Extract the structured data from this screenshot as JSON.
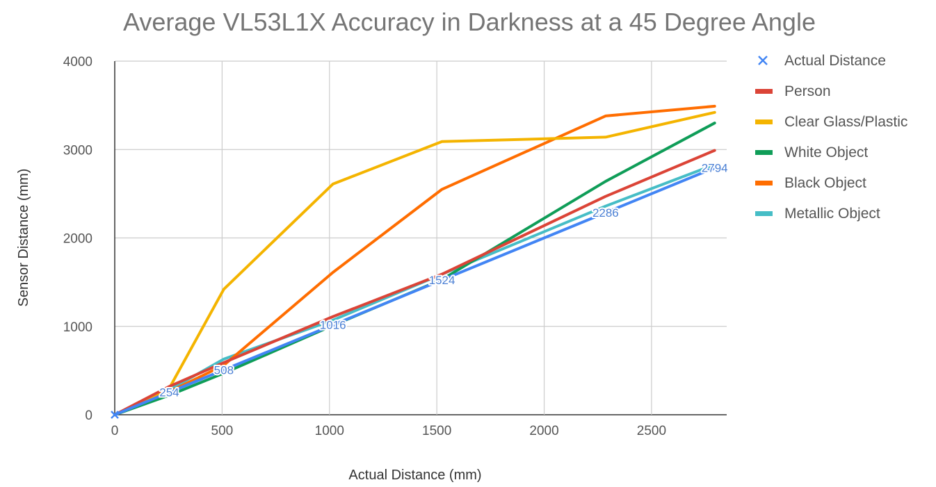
{
  "chart_data": {
    "type": "line",
    "title": "Average VL53L1X Accuracy in Darkness at a 45 Degree Angle",
    "xlabel": "Actual Distance (mm)",
    "ylabel": "Sensor Distance (mm)",
    "xlim": [
      0,
      2850
    ],
    "ylim": [
      0,
      4000
    ],
    "xticks": [
      0,
      500,
      1000,
      1500,
      2000,
      2500
    ],
    "yticks": [
      0,
      1000,
      2000,
      3000,
      4000
    ],
    "grid": true,
    "legend_position": "right",
    "x": [
      0,
      254,
      508,
      1016,
      1524,
      2286,
      2794
    ],
    "series": [
      {
        "name": "Actual Distance",
        "color": "#4285f4",
        "marker": "x",
        "values": [
          0,
          254,
          508,
          1016,
          1524,
          2286,
          2794
        ],
        "data_labels": [
          "",
          "254",
          "508",
          "1016",
          "1524",
          "2286",
          "2794"
        ]
      },
      {
        "name": "Person",
        "color": "#db4437",
        "values": [
          0,
          320,
          590,
          1110,
          1590,
          2470,
          2990
        ]
      },
      {
        "name": "Clear Glass/Plastic",
        "color": "#f4b400",
        "values": [
          0,
          300,
          1420,
          2610,
          3090,
          3140,
          3420
        ]
      },
      {
        "name": "White Object",
        "color": "#0f9d58",
        "values": [
          0,
          220,
          470,
          1010,
          1530,
          2640,
          3300
        ]
      },
      {
        "name": "Black Object",
        "color": "#ff6d00",
        "values": [
          0,
          260,
          560,
          1610,
          2550,
          3380,
          3490
        ]
      },
      {
        "name": "Metallic Object",
        "color": "#46bdc6",
        "values": [
          0,
          280,
          630,
          1070,
          1590,
          2360,
          2830
        ]
      }
    ]
  }
}
